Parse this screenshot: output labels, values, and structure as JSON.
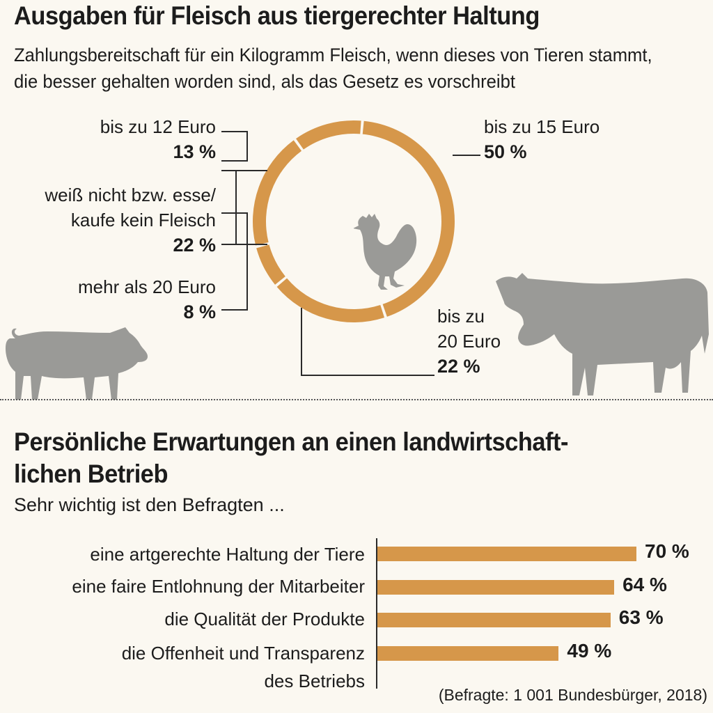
{
  "header": {
    "title": "Ausgaben für Fleisch aus tiergerechter Haltung",
    "subtitle": "Zahlungsbereitschaft für ein Kilogramm Fleisch, wenn dieses von Tieren stammt, die besser gehalten worden sind, als das Gesetz es vorschreibt"
  },
  "section2": {
    "title": "Persönliche Erwartungen an einen landwirtschaft-lichen Betrieb",
    "intro": "Sehr wichtig ist den Befragten ..."
  },
  "source": "(Befragte: 1 001 Bundesbürger, 2018)",
  "colors": {
    "accent": "#d6974a",
    "animal": "#9a9a97"
  },
  "chart_data": [
    {
      "type": "pie",
      "style": "donut",
      "title": "Ausgaben für Fleisch aus tiergerechter Haltung",
      "slices": [
        {
          "label": "bis zu 15 Euro",
          "value": 50,
          "display": "50 %"
        },
        {
          "label": "bis zu 20 Euro",
          "value": 22,
          "display": "22 %"
        },
        {
          "label": "mehr als 20 Euro",
          "value": 8,
          "display": "8 %"
        },
        {
          "label": "weiß nicht bzw. esse/ kaufe kein Fleisch",
          "value": 22,
          "display": "22 %"
        },
        {
          "label": "bis zu 12 Euro",
          "value": 13,
          "display": "13 %"
        }
      ]
    },
    {
      "type": "bar",
      "orientation": "horizontal",
      "title": "Persönliche Erwartungen an einen landwirtschaft-lichen Betrieb",
      "categories": [
        "eine artgerechte Haltung der Tiere",
        "eine faire Entlohnung der Mitarbeiter",
        "die Qualität der Produkte",
        "die Offenheit und Transparenz des Betriebs"
      ],
      "values": [
        70,
        64,
        63,
        49
      ],
      "value_labels": [
        "70 %",
        "64 %",
        "63 %",
        "49 %"
      ],
      "xlim": [
        0,
        100
      ]
    }
  ]
}
